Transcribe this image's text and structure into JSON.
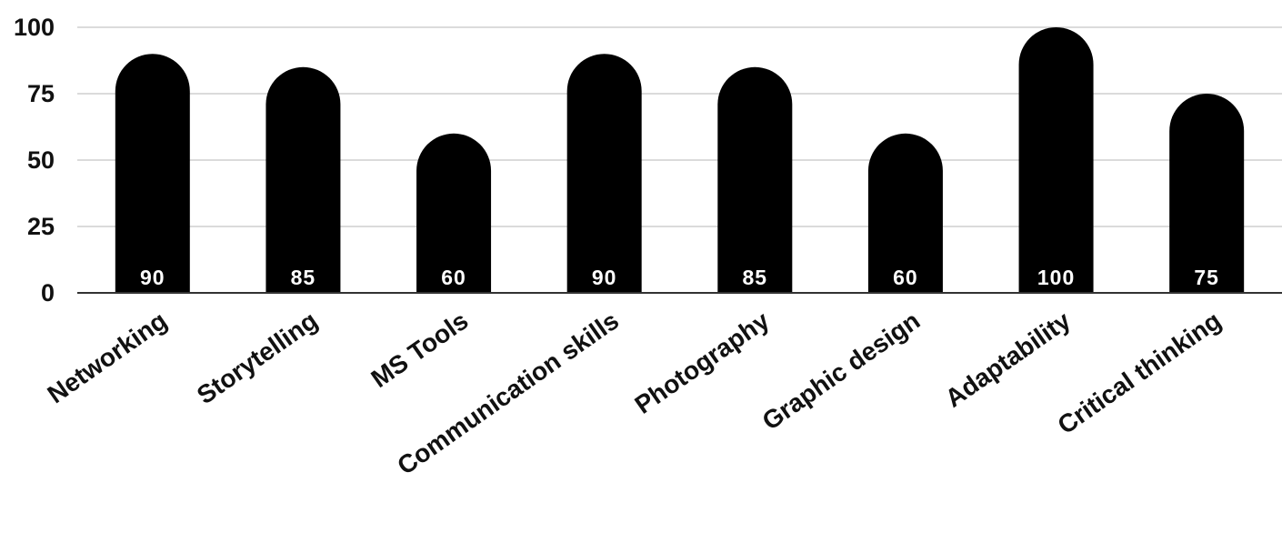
{
  "chart_data": {
    "type": "bar",
    "title": "",
    "xlabel": "",
    "ylabel": "",
    "categories": [
      "Networking",
      "Storytelling",
      "MS Tools",
      "Communication skills",
      "Photography",
      "Graphic design",
      "Adaptability",
      "Critical thinking"
    ],
    "values": [
      90,
      85,
      60,
      90,
      85,
      60,
      100,
      75
    ],
    "ylim": [
      0,
      100
    ],
    "yticks": [
      0,
      25,
      50,
      75,
      100
    ],
    "grid": true,
    "legend": "none",
    "data_labels": true,
    "bar_shape": "rounded-top",
    "colors": {
      "bar": "#000000",
      "data_label": "#ffffff",
      "grid": "#cfcfcf",
      "text": "#111111"
    }
  }
}
